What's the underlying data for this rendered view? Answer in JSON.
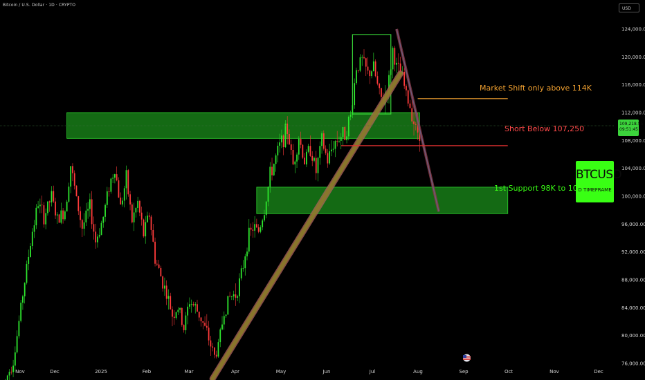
{
  "header": {
    "symbol_title": "Bitcoin / U.S. Dollar · 1D · CRYPTO",
    "currency": "USD"
  },
  "price_badge": {
    "price": "109,218.55",
    "countdown": "09:51:45"
  },
  "btc_label": {
    "ticker": "BTCUSD",
    "timeframe": "D TIMEFRAME"
  },
  "annotations": {
    "market_shift": "Market Shift only above 114K",
    "short_below": "Short Below 107,250",
    "support": "1st Support 98K to 102K"
  },
  "colors": {
    "background": "#000000",
    "up_candle": "#2ee62e",
    "down_candle": "#ff3b3b",
    "zone_fill": "#22b022",
    "trendline_fill": "#8a7a2a",
    "trendline_border": "#b06060",
    "market_shift_line": "#f0a030",
    "short_line": "#e03030",
    "label_green": "#39ff14"
  },
  "chart_data": {
    "type": "candlestick",
    "x_tick_labels": [
      "Nov",
      "Dec",
      "2025",
      "Feb",
      "Mar",
      "Apr",
      "May",
      "Jun",
      "Jul",
      "Aug",
      "Sep",
      "Oct",
      "Nov",
      "Dec"
    ],
    "y_tick_labels": [
      "124,000.00",
      "120,000.00",
      "116,000.00",
      "112,000.00",
      "108,000.00",
      "104,000.00",
      "100,000.00",
      "96,000.00",
      "92,000.00",
      "88,000.00",
      "84,000.00",
      "80,000.00",
      "76,000.00"
    ],
    "y_ticks": [
      124000,
      120000,
      116000,
      112000,
      108000,
      104000,
      100000,
      96000,
      92000,
      88000,
      84000,
      80000,
      76000
    ],
    "ylim": [
      73000,
      125500
    ],
    "last_price": 109218.55,
    "price_path": [
      [
        0,
        73500
      ],
      [
        4,
        76500
      ],
      [
        6,
        80000
      ],
      [
        9,
        86000
      ],
      [
        12,
        91500
      ],
      [
        14,
        95000
      ],
      [
        17,
        99000
      ],
      [
        20,
        97000
      ],
      [
        24,
        100000
      ],
      [
        27,
        96500
      ],
      [
        31,
        98000
      ],
      [
        34,
        104500
      ],
      [
        37,
        99500
      ],
      [
        40,
        95500
      ],
      [
        44,
        98500
      ],
      [
        47,
        93500
      ],
      [
        51,
        97000
      ],
      [
        54,
        101500
      ],
      [
        57,
        104000
      ],
      [
        60,
        98500
      ],
      [
        63,
        102500
      ],
      [
        66,
        96500
      ],
      [
        69,
        99000
      ],
      [
        72,
        94500
      ],
      [
        75,
        97500
      ],
      [
        78,
        91000
      ],
      [
        81,
        88500
      ],
      [
        84,
        86000
      ],
      [
        87,
        83000
      ],
      [
        90,
        84000
      ],
      [
        93,
        81000
      ],
      [
        96,
        85000
      ],
      [
        99,
        84000
      ],
      [
        102,
        82500
      ],
      [
        106,
        79500
      ],
      [
        109,
        77000
      ],
      [
        111,
        78500
      ],
      [
        114,
        83500
      ],
      [
        117,
        85500
      ],
      [
        120,
        86000
      ],
      [
        123,
        88500
      ],
      [
        126,
        93500
      ],
      [
        129,
        95500
      ],
      [
        132,
        95000
      ],
      [
        135,
        98000
      ],
      [
        138,
        103000
      ],
      [
        141,
        105500
      ],
      [
        144,
        108000
      ],
      [
        147,
        109500
      ],
      [
        150,
        104500
      ],
      [
        153,
        108500
      ],
      [
        156,
        105000
      ],
      [
        159,
        107000
      ],
      [
        162,
        103500
      ],
      [
        165,
        108000
      ],
      [
        168,
        105000
      ],
      [
        171,
        107500
      ],
      [
        174,
        108500
      ],
      [
        177,
        109000
      ],
      [
        180,
        111500
      ],
      [
        183,
        118500
      ],
      [
        186,
        119500
      ],
      [
        189,
        117500
      ],
      [
        192,
        118500
      ],
      [
        195,
        114500
      ],
      [
        197,
        113500
      ],
      [
        200,
        116500
      ],
      [
        202,
        121000
      ],
      [
        204,
        118500
      ],
      [
        207,
        117000
      ],
      [
        209,
        114500
      ],
      [
        212,
        112000
      ],
      [
        214,
        109500
      ],
      [
        216,
        109218
      ]
    ],
    "price_path_note": "x = trading-day index (Nov 2024 → Sep 2025), y = price (USD)",
    "zones": [
      {
        "name": "resistance-zone",
        "x_range": [
          32,
          216
        ],
        "y_range": [
          108300,
          112000
        ]
      },
      {
        "name": "support-zone",
        "x_range": [
          131,
          262
        ],
        "y_range": [
          97500,
          101300
        ]
      },
      {
        "name": "range-box",
        "x_range": [
          181,
          201
        ],
        "y_range": [
          111800,
          123200
        ]
      }
    ],
    "lines": [
      {
        "name": "rising-trendline",
        "from": [
          108,
          73800
        ],
        "to": [
          206,
          117600
        ]
      },
      {
        "name": "falling-trendline",
        "from": [
          204,
          124000
        ],
        "to": [
          226,
          97800
        ]
      },
      {
        "name": "market-shift-line",
        "from": [
          215,
          114000
        ],
        "to": [
          262,
          114000
        ]
      },
      {
        "name": "short-level-line",
        "from": [
          175,
          107250
        ],
        "to": [
          262,
          107250
        ]
      }
    ]
  }
}
